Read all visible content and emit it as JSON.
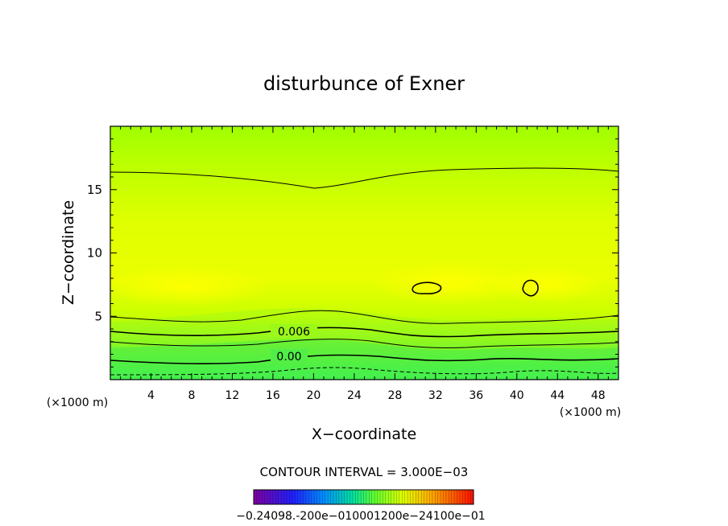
{
  "chart_data": {
    "type": "heatmap",
    "title": "disturbunce of Exner",
    "xlabel": "X−coordinate",
    "ylabel": "Z−coordinate",
    "x_unit": "(×1000 m)",
    "x_unit_right": "(×1000 m)",
    "xlim": [
      0,
      50
    ],
    "ylim": [
      0,
      20
    ],
    "xticks": [
      "4",
      "8",
      "12",
      "16",
      "20",
      "24",
      "28",
      "32",
      "36",
      "40",
      "44",
      "48"
    ],
    "yticks": [
      "5",
      "10",
      "15"
    ],
    "contour_labels": [
      {
        "text": "0.006",
        "x": 21.5,
        "z": 3.9
      },
      {
        "text": "0.00",
        "x": 17.5,
        "z": 1.9
      }
    ],
    "contour_interval": "CONTOUR INTERVAL = 3.000E−03",
    "colorbar_text": "−0.24098.‐200e−010001200e−24100e−01",
    "colors": {
      "low": "#00ff80",
      "mid": "#b4ff00",
      "high": "#ffff00"
    }
  }
}
